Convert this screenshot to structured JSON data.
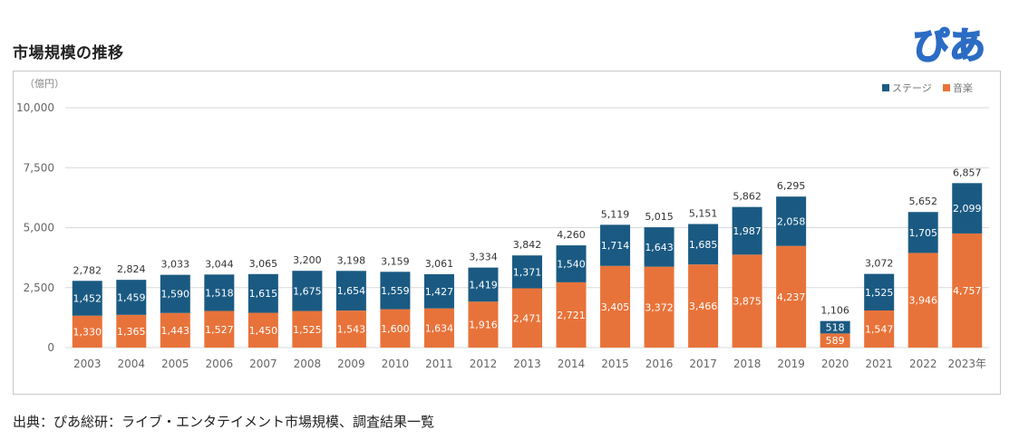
{
  "header": {
    "title": "市場規模の推移",
    "logo_text": "ぴあ",
    "logo_color": "#2b6cc4"
  },
  "footer": {
    "source": "出典：ぴあ総研：ライブ・エンタテイメント市場規模、調査結果一覧"
  },
  "chart_data": {
    "type": "bar",
    "stacked": true,
    "unit": "（億円）",
    "categories": [
      "2003",
      "2004",
      "2005",
      "2006",
      "2007",
      "2008",
      "2009",
      "2010",
      "2011",
      "2012",
      "2013",
      "2014",
      "2015",
      "2016",
      "2017",
      "2018",
      "2019",
      "2020",
      "2021",
      "2022",
      "2023年"
    ],
    "series": [
      {
        "name": "音楽",
        "color": "#e8733a",
        "values": [
          1330,
          1365,
          1443,
          1527,
          1450,
          1525,
          1543,
          1600,
          1634,
          1916,
          2471,
          2721,
          3405,
          3372,
          3466,
          3875,
          4237,
          589,
          1547,
          3946,
          4757
        ],
        "labels": [
          "1,330",
          "1,365",
          "1,443",
          "1,527",
          "1,450",
          "1,525",
          "1,543",
          "1,600",
          "1,634",
          "1,916",
          "2,471",
          "2,721",
          "3,405",
          "3,372",
          "3,466",
          "3,875",
          "4,237",
          "589",
          "1,547",
          "3,946",
          "4,757"
        ]
      },
      {
        "name": "ステージ",
        "color": "#1a5a82",
        "values": [
          1452,
          1459,
          1590,
          1518,
          1615,
          1675,
          1654,
          1559,
          1427,
          1419,
          1371,
          1540,
          1714,
          1643,
          1685,
          1987,
          2058,
          518,
          1525,
          1705,
          2099
        ],
        "labels": [
          "1,452",
          "1,459",
          "1,590",
          "1,518",
          "1,615",
          "1,675",
          "1,654",
          "1,559",
          "1,427",
          "1,419",
          "1,371",
          "1,540",
          "1,714",
          "1,643",
          "1,685",
          "1,987",
          "2,058",
          "518",
          "1,525",
          "1,705",
          "2,099"
        ]
      }
    ],
    "totals": [
      2782,
      2824,
      3033,
      3044,
      3065,
      3200,
      3198,
      3159,
      3061,
      3334,
      3842,
      4260,
      5119,
      5015,
      5151,
      5862,
      6295,
      1106,
      3072,
      5652,
      6857
    ],
    "total_labels": [
      "2,782",
      "2,824",
      "3,033",
      "3,044",
      "3,065",
      "3,200",
      "3,198",
      "3,159",
      "3,061",
      "3,334",
      "3,842",
      "4,260",
      "5,119",
      "5,015",
      "5,151",
      "5,862",
      "6,295",
      "1,106",
      "3,072",
      "5,652",
      "6,857"
    ],
    "yticks": [
      0,
      2500,
      5000,
      7500,
      10000
    ],
    "ytick_labels": [
      "0",
      "2,500",
      "5,000",
      "7,500",
      "10,000"
    ],
    "ylim": [
      0,
      10000
    ],
    "grid": true,
    "legend_position": "top-right",
    "legend_order": [
      "ステージ",
      "音楽"
    ]
  }
}
